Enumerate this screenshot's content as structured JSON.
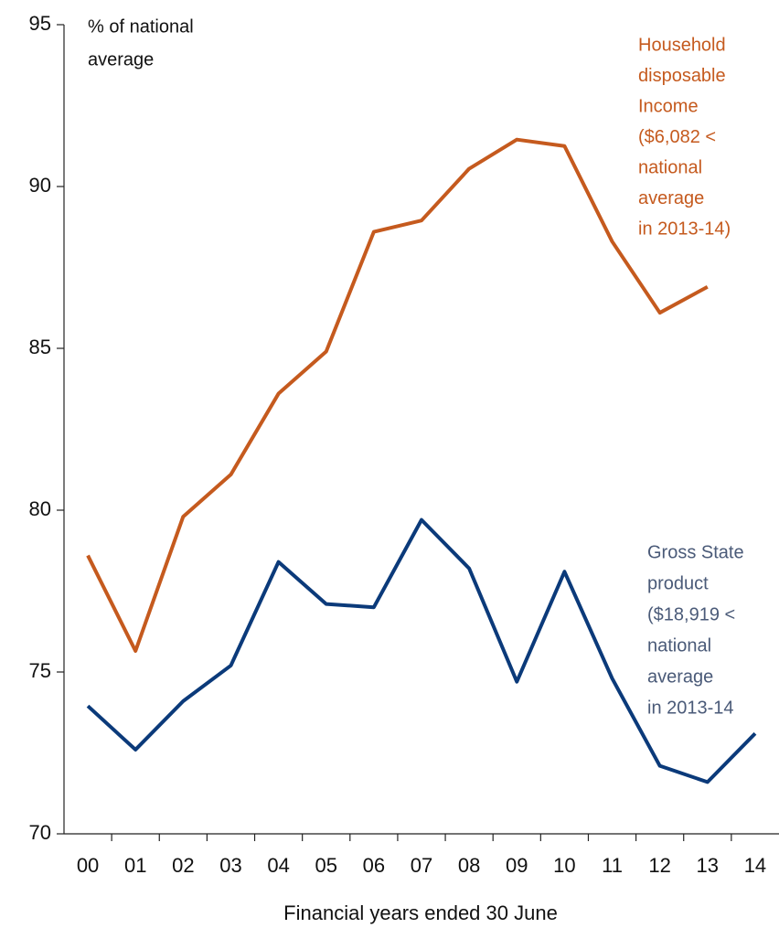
{
  "chart_data": {
    "type": "line",
    "y_label_lines": [
      "% of national",
      "average"
    ],
    "x_label": "Financial years ended 30 June",
    "categories": [
      "00",
      "01",
      "02",
      "03",
      "04",
      "05",
      "06",
      "07",
      "08",
      "09",
      "10",
      "11",
      "12",
      "13",
      "14"
    ],
    "series": [
      {
        "label_lines": [
          "Household",
          "disposable",
          "Income",
          "($6,082 <",
          "national",
          "average",
          "in 2013-14)"
        ],
        "color": "#c55a1e",
        "values": [
          78.6,
          75.65,
          79.8,
          81.1,
          83.6,
          84.9,
          88.6,
          88.95,
          90.55,
          91.45,
          91.25,
          88.3,
          86.1,
          86.9,
          null
        ]
      },
      {
        "label_lines": [
          "Gross State",
          "product",
          "($18,919 <",
          "national",
          "average",
          "in 2013-14"
        ],
        "color": "#0b3a7a",
        "label_color": "#4a5a78",
        "values": [
          73.95,
          72.6,
          74.1,
          75.2,
          78.4,
          77.1,
          77.0,
          79.7,
          78.2,
          74.7,
          78.1,
          74.8,
          72.1,
          71.6,
          73.1
        ]
      }
    ],
    "ylim": [
      70,
      95
    ],
    "yticks": [
      70,
      75,
      80,
      85,
      90,
      95
    ],
    "grid": false
  }
}
